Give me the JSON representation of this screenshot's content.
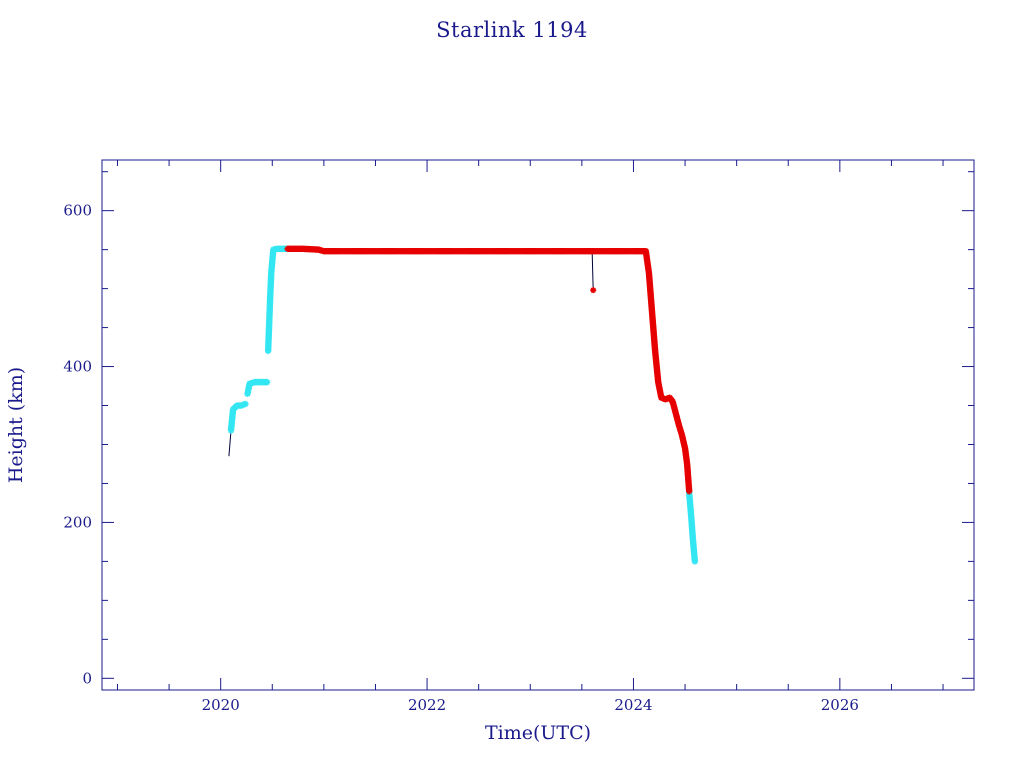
{
  "chart_data": {
    "type": "scatter",
    "title": "Starlink 1194",
    "xlabel": "Time(UTC)",
    "ylabel": "Height (km)",
    "xlim": [
      2018.85,
      2027.3
    ],
    "ylim": [
      -15,
      665
    ],
    "x_ticks": [
      2020,
      2022,
      2024,
      2026
    ],
    "y_ticks": [
      0,
      200,
      400,
      600
    ],
    "grid": false,
    "axis_color": "#1a1a8c",
    "series": [
      {
        "color": "#33e6f2",
        "marker": "star",
        "segments": [
          [
            [
              2020.1,
              318
            ],
            [
              2020.12,
              345
            ],
            [
              2020.16,
              350
            ],
            [
              2020.2,
              350
            ],
            [
              2020.24,
              352
            ]
          ],
          [
            [
              2020.26,
              365
            ],
            [
              2020.28,
              378
            ],
            [
              2020.33,
              380
            ],
            [
              2020.4,
              380
            ],
            [
              2020.45,
              380
            ]
          ],
          [
            [
              2020.46,
              420
            ],
            [
              2020.47,
              455
            ],
            [
              2020.48,
              490
            ],
            [
              2020.49,
              520
            ],
            [
              2020.51,
              550
            ],
            [
              2020.55,
              551
            ],
            [
              2020.6,
              551
            ],
            [
              2020.65,
              551
            ]
          ],
          [
            [
              2024.54,
              238
            ],
            [
              2024.555,
              215
            ],
            [
              2024.565,
              198
            ],
            [
              2024.575,
              180
            ],
            [
              2024.585,
              165
            ],
            [
              2024.595,
              150
            ]
          ]
        ]
      },
      {
        "color": "#e60000",
        "marker": "star",
        "segments": [
          [
            [
              2020.65,
              551
            ],
            [
              2020.8,
              551
            ],
            [
              2020.95,
              550
            ],
            [
              2021.0,
              548
            ],
            [
              2021.5,
              548
            ],
            [
              2022.0,
              548
            ],
            [
              2022.5,
              548
            ],
            [
              2023.0,
              548
            ],
            [
              2023.5,
              548
            ],
            [
              2024.0,
              548
            ],
            [
              2024.12,
              548
            ]
          ],
          [
            [
              2024.12,
              548
            ],
            [
              2024.15,
              520
            ],
            [
              2024.18,
              470
            ],
            [
              2024.21,
              420
            ],
            [
              2024.24,
              380
            ],
            [
              2024.27,
              360
            ],
            [
              2024.31,
              358
            ],
            [
              2024.35,
              360
            ],
            [
              2024.38,
              355
            ],
            [
              2024.41,
              340
            ],
            [
              2024.44,
              325
            ],
            [
              2024.47,
              312
            ],
            [
              2024.5,
              295
            ],
            [
              2024.52,
              275
            ],
            [
              2024.54,
              240
            ]
          ]
        ],
        "isolated_points": [
          [
            2023.61,
            498
          ]
        ]
      }
    ],
    "trace_lines": [
      {
        "color": "#000033",
        "points": [
          [
            2020.08,
            285
          ],
          [
            2020.1,
            318
          ]
        ]
      },
      {
        "color": "#000033",
        "points": [
          [
            2023.6,
            545
          ],
          [
            2023.61,
            498
          ]
        ]
      }
    ]
  }
}
